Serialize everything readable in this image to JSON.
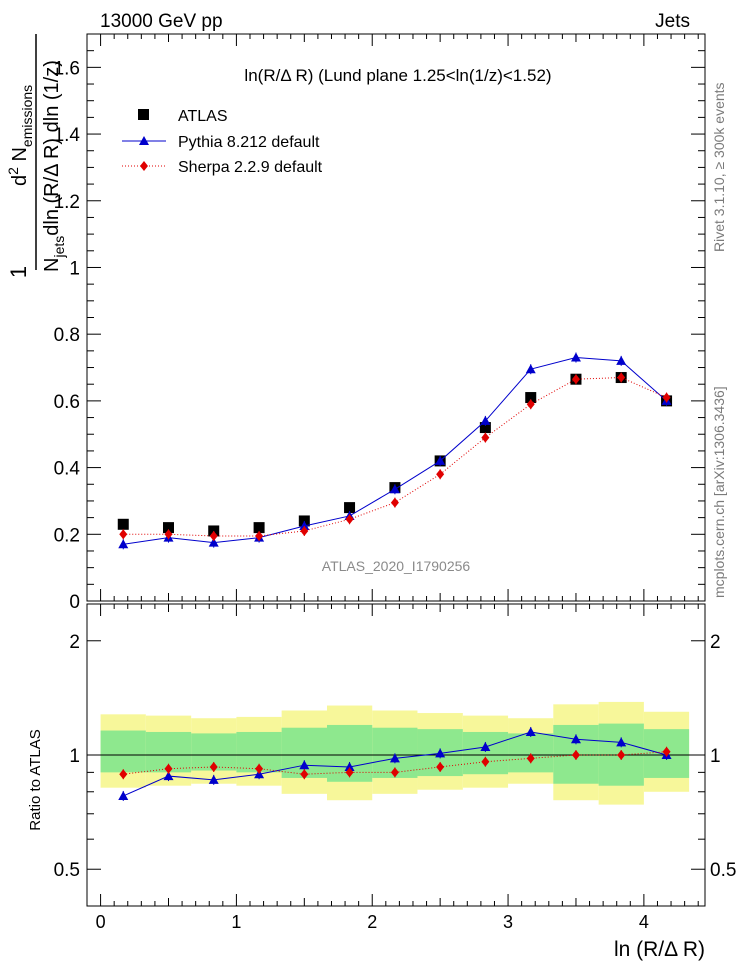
{
  "header": {
    "energy": "13000 GeV pp",
    "category": "Jets"
  },
  "side_labels": {
    "rivet": "Rivet 3.1.10, ≥ 300k events",
    "source": "mcplots.cern.ch [arXiv:1306.3436]"
  },
  "chart_data": [
    {
      "type": "scatter",
      "panel": "main",
      "title": "ln(R/Δ R) (Lund plane 1.25<ln(1/z)<1.52)",
      "watermark": "ATLAS_2020_I1790256",
      "ylabel": "1/N_jets d²N_emissions / dln(R/Δ R) dln(1/z)",
      "ylabel_parts": {
        "num_prefix": "d",
        "num_sup": "2",
        "num_main": " N",
        "num_sub": "emissions",
        "one": "1",
        "den_N": "N",
        "den_sub": "jets",
        "den_rest": "dln (R/Δ R) dln (1/z)"
      },
      "xlabel": "ln (R/Δ R)",
      "xlim": [
        -0.1,
        4.45
      ],
      "ylim": [
        0,
        1.7
      ],
      "xticks": [
        "0",
        "1",
        "2",
        "3",
        "4"
      ],
      "yticks": [
        "0",
        "0.2",
        "0.4",
        "0.6",
        "0.8",
        "1",
        "1.2",
        "1.4",
        "1.6"
      ],
      "legend_position": "top-left",
      "series": [
        {
          "name": "ATLAS",
          "marker": "square",
          "color": "#000000",
          "x": [
            0.167,
            0.5,
            0.833,
            1.167,
            1.5,
            1.833,
            2.167,
            2.5,
            2.833,
            3.167,
            3.5,
            3.833,
            4.167
          ],
          "y": [
            0.23,
            0.22,
            0.21,
            0.22,
            0.24,
            0.28,
            0.34,
            0.42,
            0.52,
            0.61,
            0.665,
            0.67,
            0.6
          ]
        },
        {
          "name": "Pythia 8.212 default",
          "marker": "triangle",
          "color": "#0000cc",
          "x": [
            0.167,
            0.5,
            0.833,
            1.167,
            1.5,
            1.833,
            2.167,
            2.5,
            2.833,
            3.167,
            3.5,
            3.833,
            4.167
          ],
          "y": [
            0.17,
            0.19,
            0.175,
            0.19,
            0.225,
            0.255,
            0.335,
            0.42,
            0.54,
            0.695,
            0.73,
            0.72,
            0.6
          ]
        },
        {
          "name": "Sherpa 2.2.9 default",
          "marker": "diamond",
          "color": "#e00000",
          "x": [
            0.167,
            0.5,
            0.833,
            1.167,
            1.5,
            1.833,
            2.167,
            2.5,
            2.833,
            3.167,
            3.5,
            3.833,
            4.167
          ],
          "y": [
            0.2,
            0.2,
            0.195,
            0.195,
            0.21,
            0.245,
            0.295,
            0.38,
            0.49,
            0.59,
            0.665,
            0.67,
            0.61
          ]
        }
      ]
    },
    {
      "type": "scatter",
      "panel": "ratio",
      "ylabel": "Ratio to ATLAS",
      "xlabel": "ln (R/Δ R)",
      "xlim": [
        -0.1,
        4.45
      ],
      "ylim": [
        0.4,
        2.5
      ],
      "log_y": true,
      "yticks": [
        "0.5",
        "1",
        "2"
      ],
      "xticks": [
        "0",
        "1",
        "2",
        "3",
        "4"
      ],
      "reference_line": 1,
      "bands": {
        "x_edges": [
          0.0,
          0.333,
          0.667,
          1.0,
          1.333,
          1.667,
          2.0,
          2.333,
          2.667,
          3.0,
          3.333,
          3.667,
          4.0,
          4.333
        ],
        "yellow_low": [
          0.82,
          0.83,
          0.84,
          0.83,
          0.79,
          0.76,
          0.79,
          0.81,
          0.82,
          0.84,
          0.76,
          0.74,
          0.8
        ],
        "yellow_high": [
          1.28,
          1.27,
          1.25,
          1.26,
          1.31,
          1.35,
          1.31,
          1.29,
          1.27,
          1.25,
          1.36,
          1.38,
          1.3
        ],
        "green_low": [
          0.9,
          0.9,
          0.91,
          0.9,
          0.87,
          0.85,
          0.87,
          0.88,
          0.89,
          0.9,
          0.84,
          0.83,
          0.87
        ],
        "green_high": [
          1.16,
          1.15,
          1.14,
          1.15,
          1.18,
          1.2,
          1.18,
          1.17,
          1.15,
          1.14,
          1.2,
          1.21,
          1.17
        ],
        "green_color": "#8ee88e",
        "yellow_color": "#f7f79a"
      },
      "series": [
        {
          "name": "Pythia 8.212 default",
          "marker": "triangle",
          "color": "#0000cc",
          "x": [
            0.167,
            0.5,
            0.833,
            1.167,
            1.5,
            1.833,
            2.167,
            2.5,
            2.833,
            3.167,
            3.5,
            3.833,
            4.167
          ],
          "y": [
            0.78,
            0.88,
            0.86,
            0.89,
            0.94,
            0.93,
            0.98,
            1.01,
            1.05,
            1.15,
            1.1,
            1.08,
            1.0
          ]
        },
        {
          "name": "Sherpa 2.2.9 default",
          "marker": "diamond",
          "color": "#e00000",
          "x": [
            0.167,
            0.5,
            0.833,
            1.167,
            1.5,
            1.833,
            2.167,
            2.5,
            2.833,
            3.167,
            3.5,
            3.833,
            4.167
          ],
          "y": [
            0.89,
            0.92,
            0.93,
            0.92,
            0.89,
            0.9,
            0.9,
            0.93,
            0.96,
            0.98,
            1.0,
            1.0,
            1.02
          ]
        }
      ]
    }
  ]
}
